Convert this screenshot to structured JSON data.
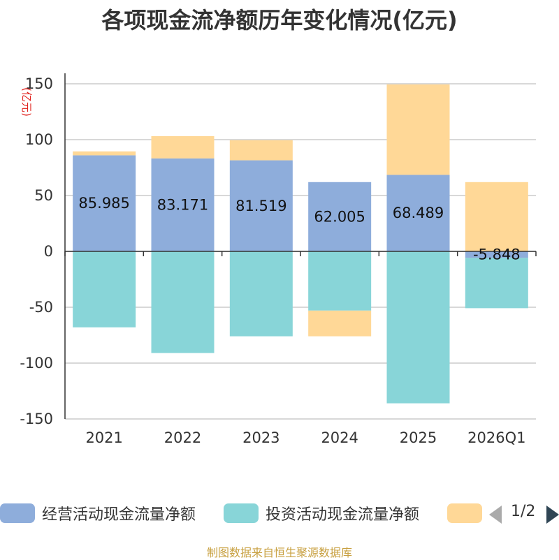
{
  "chart_data": {
    "type": "bar",
    "stacked": true,
    "title": "各项现金流净额历年变化情况(亿元)",
    "ylabel": "(亿元)",
    "ylim": [
      -150,
      150
    ],
    "yticks": [
      150,
      100,
      50,
      0,
      -50,
      -100,
      -150
    ],
    "ytick_labels": [
      "150",
      "100",
      "50",
      "0",
      "-50",
      "-100",
      "-150"
    ],
    "categories": [
      "2021",
      "2022",
      "2023",
      "2024",
      "2025",
      "2026Q1"
    ],
    "series": [
      {
        "name": "经营活动现金流量净额",
        "color": "#8eaddb",
        "values": [
          85.985,
          83.171,
          81.519,
          62.005,
          68.489,
          -5.848
        ],
        "labels": [
          "85.985",
          "83.171",
          "81.519",
          "62.005",
          "68.489",
          "-5.848"
        ]
      },
      {
        "name": "投资活动现金流量净额",
        "color": "#88d5d8",
        "values": [
          -68,
          -91,
          -76,
          -53,
          -136,
          -45
        ]
      },
      {
        "name": "",
        "color": "#ffd897",
        "values": [
          3.5,
          20,
          18,
          -23,
          81,
          62
        ]
      }
    ],
    "grid": true,
    "legend_position": "bottom"
  },
  "legend": {
    "page": "1/2"
  },
  "source": "制图数据来自恒生聚源数据库"
}
